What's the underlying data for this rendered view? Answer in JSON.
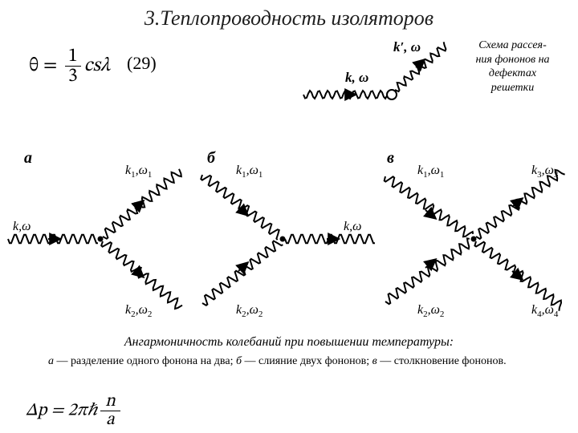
{
  "title": "3.Теплопроводность изоляторов",
  "eq1": {
    "theta": "θ",
    "equals": " = ",
    "frac_num": "1",
    "frac_den": "3",
    "tail": "csλ",
    "number": "(29)"
  },
  "defect": {
    "caption": "Схема рассея-\nния фононов на\nдефектах\nрешетки",
    "k_in": "k, ω",
    "k_out": "k′, ω",
    "stroke": "#000000",
    "stroke_width": 2.0,
    "wave_amp": 5,
    "wave_period": 11
  },
  "row": {
    "panel_a_letter": "а",
    "panel_b_letter": "б",
    "panel_c_letter": "в",
    "labels": {
      "k_omega": "k,ω",
      "k1_w1": [
        "k",
        "1",
        ",ω",
        "1"
      ],
      "k2_w2": [
        "k",
        "2",
        ",ω",
        "2"
      ],
      "k3_w3": [
        "k",
        "3",
        ",ω",
        "3"
      ],
      "k4_w4": [
        "k",
        "4",
        ",ω",
        "4"
      ]
    },
    "stroke": "#000000",
    "stroke_width": 2.0,
    "wave_amp": 6,
    "wave_period": 12
  },
  "caption_main": "Ангармоничность колебаний при повышении температуры:",
  "caption_sub_a": "а",
  "caption_sub_b": "б",
  "caption_sub_c": "в",
  "caption_sub_text_a": " — разделение одного фонона на два; ",
  "caption_sub_text_b": " — слияние двух фононов; ",
  "caption_sub_text_c": " — столкновение фононов.",
  "eq2": {
    "head": "Δp = 2πℏ",
    "frac_num": "n",
    "frac_den": "a"
  },
  "colors": {
    "text": "#000000",
    "bg": "#ffffff"
  },
  "typography": {
    "title_pt": 26,
    "body_pt": 16,
    "caption_pt": 14
  }
}
